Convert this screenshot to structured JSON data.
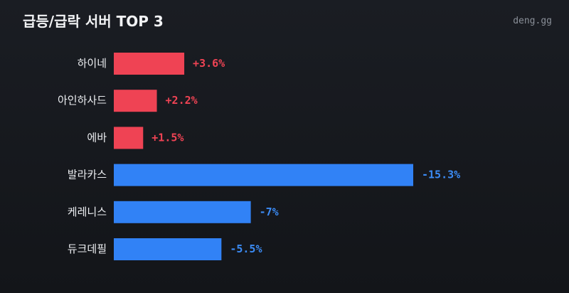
{
  "header": {
    "title": "급등/급락 서버 TOP 3",
    "source": "deng.gg"
  },
  "colors": {
    "up": "#ef4354",
    "down": "#3182f6",
    "up_text": "#ef4354",
    "down_text": "#3b8bf5"
  },
  "chart_data": {
    "type": "bar",
    "orientation": "horizontal",
    "title": "급등/급락 서버 TOP 3",
    "categories": [
      "하이네",
      "아인하사드",
      "에바",
      "발라카스",
      "케레니스",
      "듀크데필"
    ],
    "values": [
      3.6,
      2.2,
      1.5,
      -15.3,
      -7,
      -5.5
    ],
    "value_labels": [
      "+3.6%",
      "+2.2%",
      "+1.5%",
      "-15.3%",
      "-7%",
      "-5.5%"
    ],
    "unit": "%",
    "grid": false
  }
}
